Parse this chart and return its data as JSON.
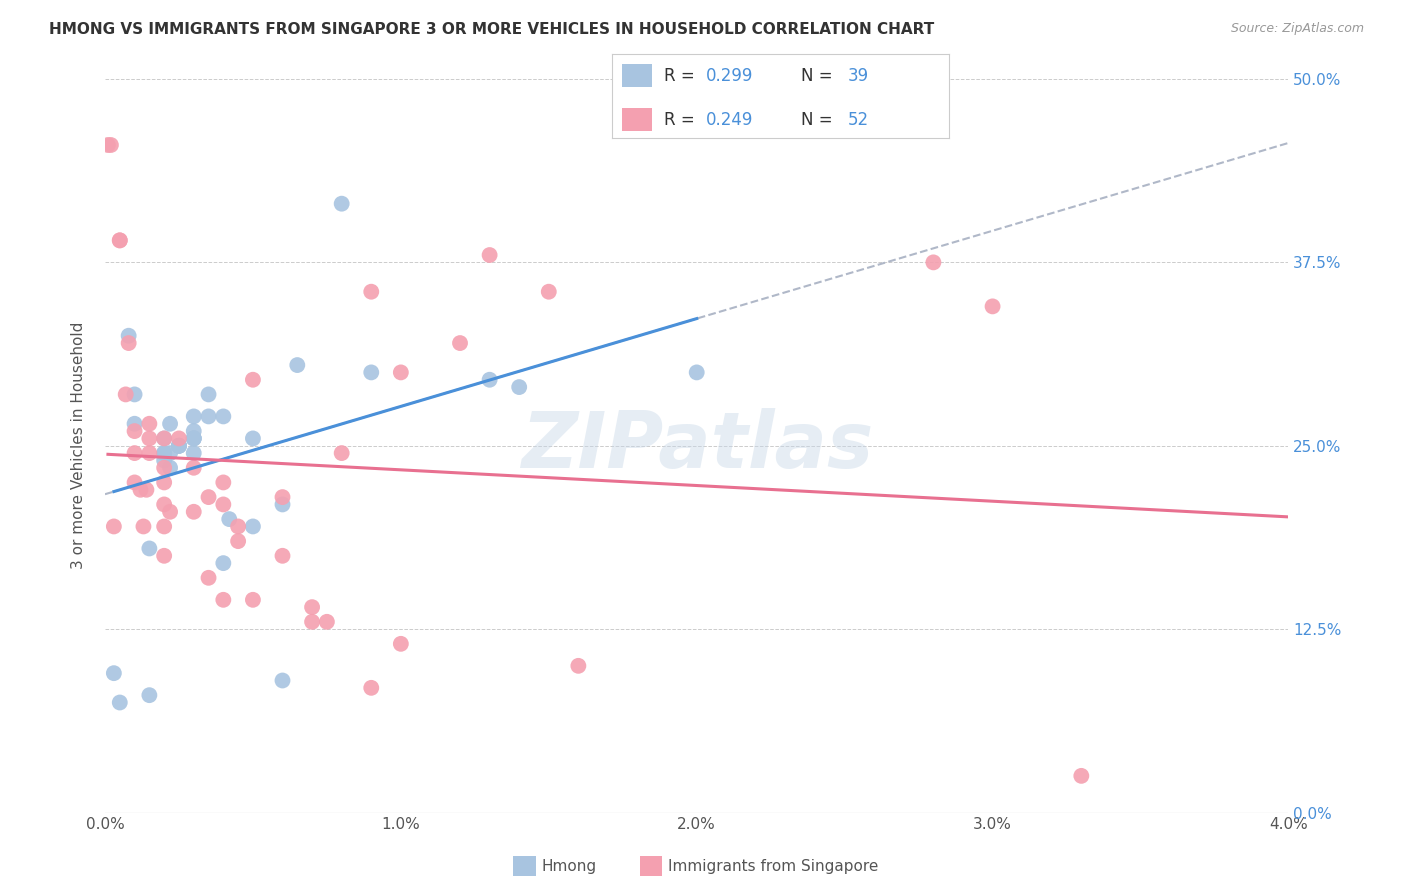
{
  "title": "HMONG VS IMMIGRANTS FROM SINGAPORE 3 OR MORE VEHICLES IN HOUSEHOLD CORRELATION CHART",
  "source": "Source: ZipAtlas.com",
  "xlabel_range": [
    0.0,
    0.04
  ],
  "ylabel_range": [
    0.0,
    0.5
  ],
  "ylabel_label": "3 or more Vehicles in Household",
  "legend_label_1": "Hmong",
  "legend_label_2": "Immigrants from Singapore",
  "R1": 0.299,
  "N1": 39,
  "R2": 0.249,
  "N2": 52,
  "color_blue": "#a8c4e0",
  "color_pink": "#f4a0b0",
  "trend_blue": "#4a90d9",
  "trend_pink": "#e87090",
  "trend_gray": "#b0b8c8",
  "watermark": "ZIPatlas",
  "hmong_x": [
    0.0003,
    0.0005,
    0.0008,
    0.001,
    0.001,
    0.0015,
    0.0015,
    0.002,
    0.002,
    0.002,
    0.002,
    0.0022,
    0.0022,
    0.0022,
    0.0025,
    0.0025,
    0.0025,
    0.0025,
    0.003,
    0.003,
    0.003,
    0.003,
    0.003,
    0.003,
    0.0035,
    0.0035,
    0.004,
    0.004,
    0.0042,
    0.005,
    0.005,
    0.006,
    0.006,
    0.0065,
    0.008,
    0.009,
    0.013,
    0.014,
    0.02
  ],
  "hmong_y": [
    0.095,
    0.075,
    0.325,
    0.285,
    0.265,
    0.08,
    0.18,
    0.255,
    0.245,
    0.24,
    0.245,
    0.265,
    0.245,
    0.235,
    0.25,
    0.25,
    0.25,
    0.25,
    0.245,
    0.255,
    0.26,
    0.255,
    0.27,
    0.255,
    0.27,
    0.285,
    0.27,
    0.17,
    0.2,
    0.255,
    0.195,
    0.09,
    0.21,
    0.305,
    0.415,
    0.3,
    0.295,
    0.29,
    0.3
  ],
  "singapore_x": [
    0.0001,
    0.0002,
    0.0003,
    0.0005,
    0.0005,
    0.0007,
    0.0008,
    0.001,
    0.001,
    0.001,
    0.0012,
    0.0013,
    0.0014,
    0.0015,
    0.0015,
    0.0015,
    0.002,
    0.002,
    0.002,
    0.002,
    0.002,
    0.002,
    0.0022,
    0.0025,
    0.003,
    0.003,
    0.0035,
    0.0035,
    0.004,
    0.004,
    0.004,
    0.0045,
    0.0045,
    0.005,
    0.005,
    0.006,
    0.006,
    0.007,
    0.007,
    0.0075,
    0.008,
    0.009,
    0.009,
    0.01,
    0.01,
    0.012,
    0.013,
    0.015,
    0.016,
    0.028,
    0.03,
    0.033
  ],
  "singapore_y": [
    0.455,
    0.455,
    0.195,
    0.39,
    0.39,
    0.285,
    0.32,
    0.245,
    0.225,
    0.26,
    0.22,
    0.195,
    0.22,
    0.255,
    0.265,
    0.245,
    0.225,
    0.255,
    0.21,
    0.235,
    0.195,
    0.175,
    0.205,
    0.255,
    0.235,
    0.205,
    0.215,
    0.16,
    0.225,
    0.21,
    0.145,
    0.195,
    0.185,
    0.295,
    0.145,
    0.215,
    0.175,
    0.14,
    0.13,
    0.13,
    0.245,
    0.085,
    0.355,
    0.3,
    0.115,
    0.32,
    0.38,
    0.355,
    0.1,
    0.375,
    0.345,
    0.025
  ]
}
